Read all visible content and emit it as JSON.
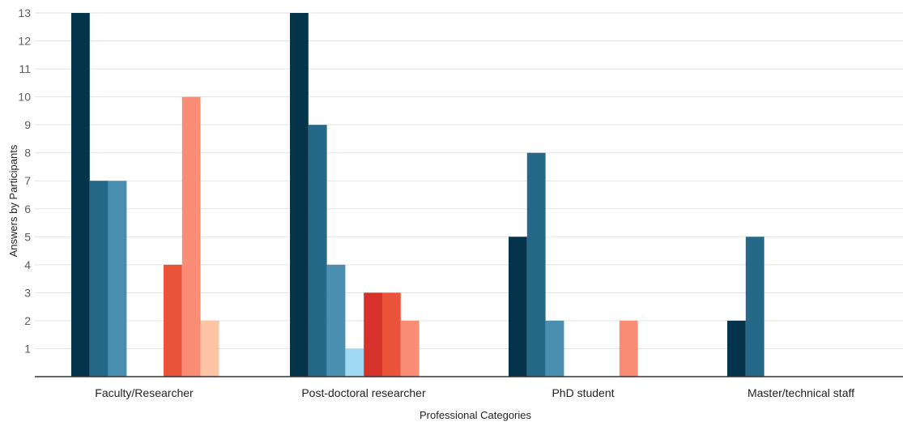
{
  "chart_data": {
    "type": "bar",
    "title": "",
    "xlabel": "Professional Categories",
    "ylabel": "Answers by Participants",
    "ylim": [
      0,
      13
    ],
    "yticks": [
      1,
      2,
      3,
      4,
      5,
      6,
      7,
      8,
      9,
      10,
      11,
      12,
      13
    ],
    "grid": true,
    "legend": "none",
    "categories": [
      "Faculty/Researcher",
      "Post-doctoral researcher",
      "PhD student",
      "Master/technical staff"
    ],
    "series": [
      {
        "color": "#03344c",
        "values": [
          13,
          13,
          5,
          2
        ]
      },
      {
        "color": "#256887",
        "values": [
          7,
          9,
          8,
          5
        ]
      },
      {
        "color": "#4b8fb0",
        "values": [
          7,
          4,
          2,
          0
        ]
      },
      {
        "color": "#9fd9f2",
        "values": [
          0,
          1,
          0,
          0
        ]
      },
      {
        "color": "#d6322b",
        "values": [
          0,
          3,
          0,
          0
        ]
      },
      {
        "color": "#e8533a",
        "values": [
          4,
          3,
          0,
          0
        ]
      },
      {
        "color": "#f98d75",
        "values": [
          10,
          2,
          2,
          0
        ]
      },
      {
        "color": "#fdc4a6",
        "values": [
          2,
          0,
          0,
          0
        ]
      }
    ]
  }
}
